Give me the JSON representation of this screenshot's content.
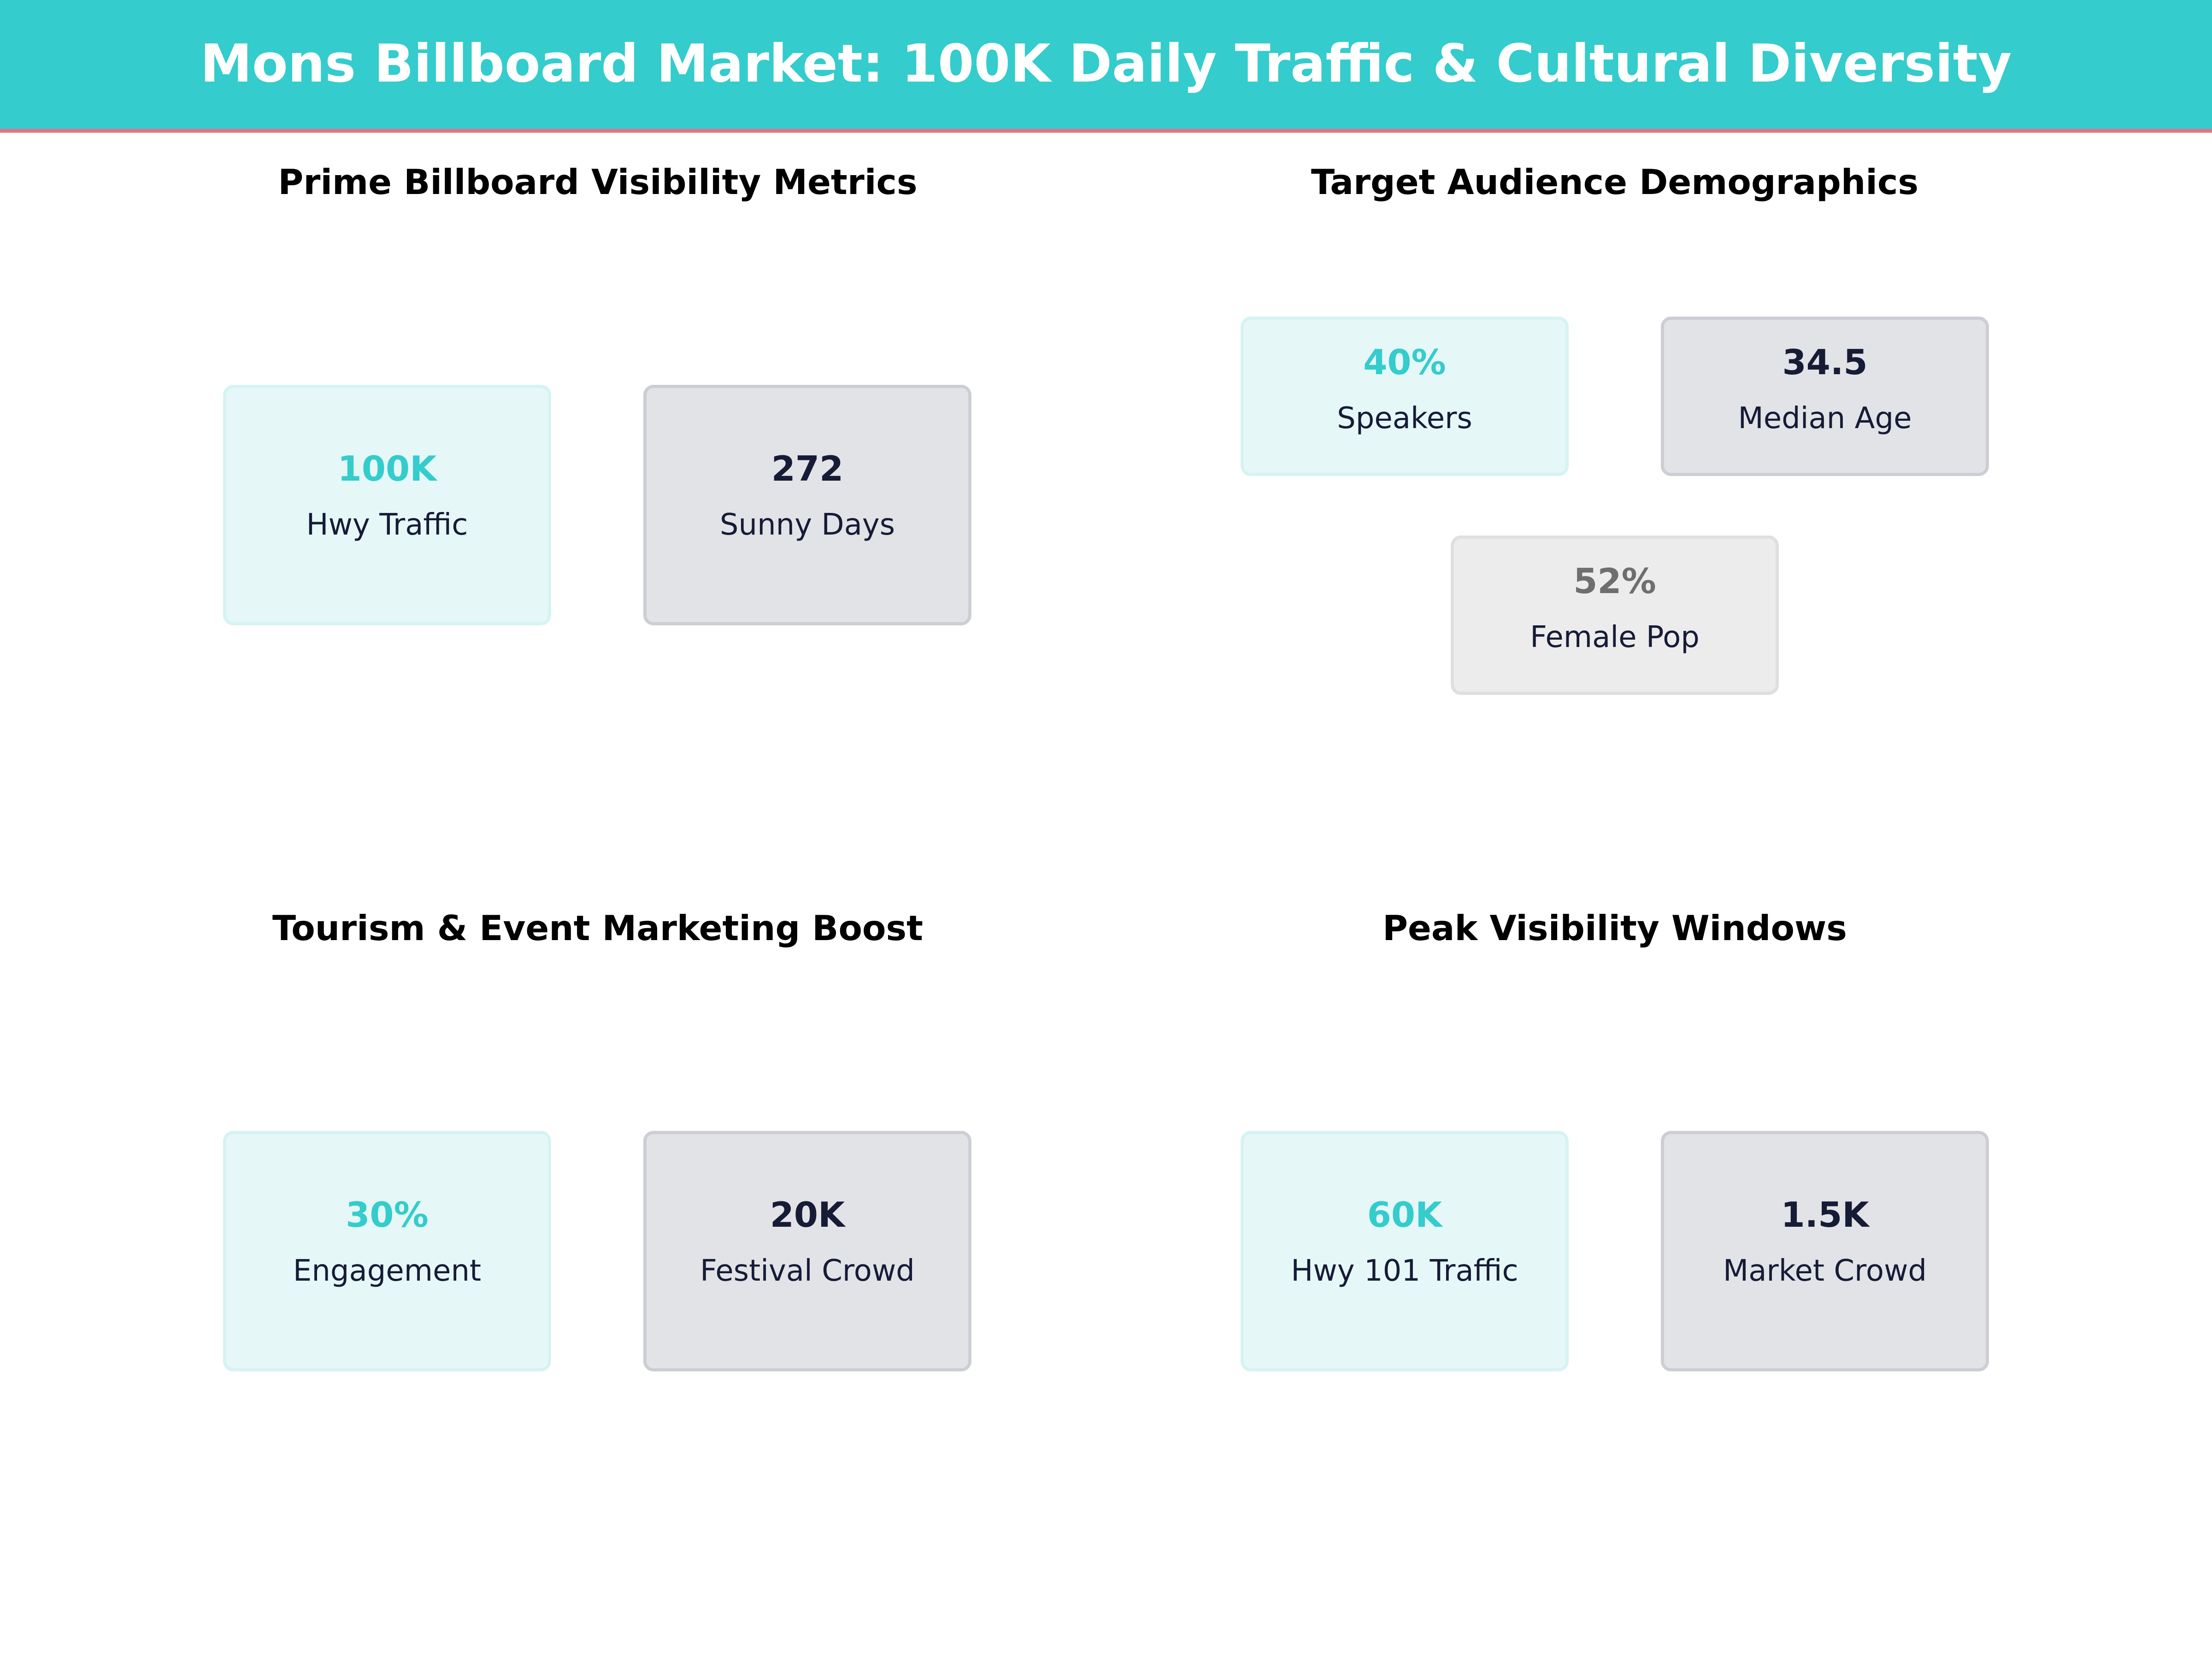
{
  "header": {
    "title": "Mons Billboard Market: 100K Daily Traffic & Cultural Diversity"
  },
  "colors": {
    "header_bg": "#34cccc",
    "header_rule": "#ec6f82",
    "accent_teal": "#34cccc",
    "accent_navy": "#161b36",
    "accent_gray": "#6e6e6e"
  },
  "panels": [
    {
      "title": "Prime Billboard Visibility Metrics",
      "cards": [
        {
          "value": "100K",
          "label": "Hwy Traffic"
        },
        {
          "value": "272",
          "label": "Sunny Days"
        }
      ]
    },
    {
      "title": "Target Audience Demographics",
      "cards": [
        {
          "value": "40%",
          "label": "Speakers"
        },
        {
          "value": "34.5",
          "label": "Median Age"
        },
        {
          "value": "52%",
          "label": "Female Pop"
        }
      ]
    },
    {
      "title": "Tourism & Event Marketing Boost",
      "cards": [
        {
          "value": "30%",
          "label": "Engagement"
        },
        {
          "value": "20K",
          "label": "Festival Crowd"
        }
      ]
    },
    {
      "title": "Peak Visibility Windows",
      "cards": [
        {
          "value": "60K",
          "label": "Hwy 101 Traffic"
        },
        {
          "value": "1.5K",
          "label": "Market Crowd"
        }
      ]
    }
  ]
}
